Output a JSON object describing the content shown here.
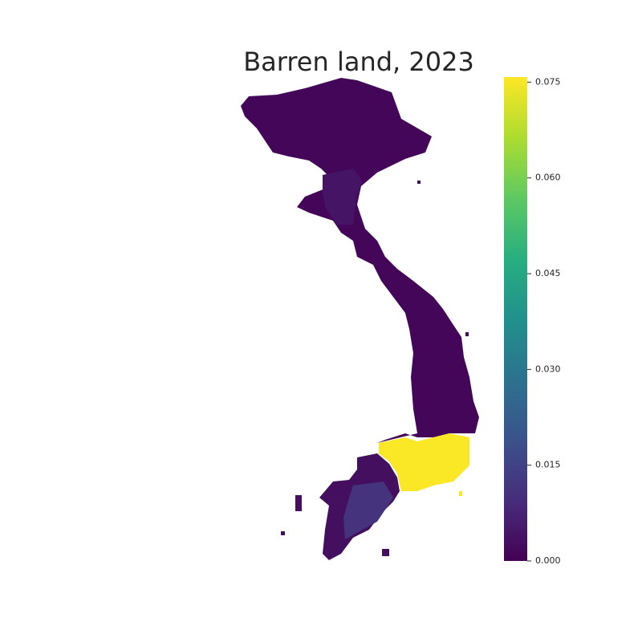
{
  "title": "Barren land, 2023",
  "colorbar": {
    "colormap": "viridis",
    "lim": [
      0,
      0.0758
    ],
    "ticks": [
      {
        "value": 0,
        "label": "0.000"
      },
      {
        "value": 0.015,
        "label": "0.015"
      },
      {
        "value": 0.03,
        "label": "0.030"
      },
      {
        "value": 0.045,
        "label": "0.045"
      },
      {
        "value": 0.06,
        "label": "0.060"
      },
      {
        "value": 0.075,
        "label": "0.075"
      }
    ]
  },
  "region_values": [
    0.001,
    0.004,
    0.0755,
    0.003,
    0.011
  ]
}
